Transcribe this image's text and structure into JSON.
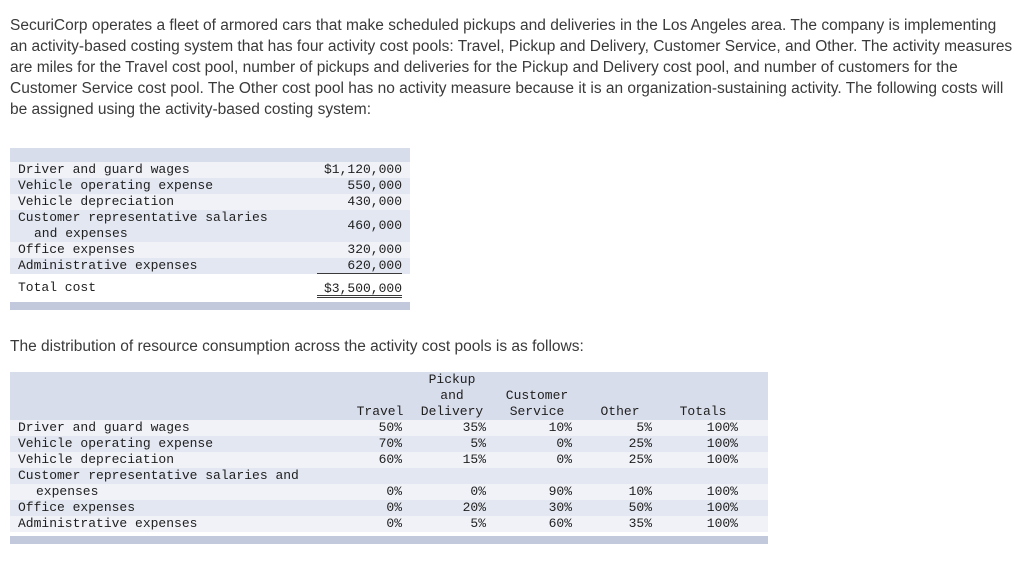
{
  "intro": {
    "text": "SecuriCorp operates a fleet of armored cars that make scheduled pickups and deliveries in the Los Angeles area. The company is implementing an activity-based costing system that has four activity cost pools: Travel, Pickup and Delivery, Customer Service, and Other. The activity measures are miles for the Travel cost pool, number of pickups and deliveries for the Pickup and Delivery cost pool, and number of customers for the Customer Service cost pool. The Other cost pool has no activity measure because it is an organization-sustaining activity. The following costs will be assigned using the activity-based costing system:"
  },
  "distribution_intro": {
    "text": "The distribution of resource consumption across the activity cost pools is as follows:"
  },
  "cost_table": {
    "rows": [
      {
        "label": "Driver and guard wages",
        "value": "$1,120,000"
      },
      {
        "label": "Vehicle operating expense",
        "value": "550,000"
      },
      {
        "label": "Vehicle depreciation",
        "value": "430,000"
      },
      {
        "label_line1": "Customer representative salaries",
        "label_line2": "and expenses",
        "value": "460,000"
      },
      {
        "label": "Office expenses",
        "value": "320,000"
      },
      {
        "label": "Administrative expenses",
        "value": "620,000"
      },
      {
        "label": "Total cost",
        "value": "$3,500,000"
      }
    ]
  },
  "distribution_table": {
    "header": {
      "pickup_line1": "Pickup",
      "pickup_line2": "and",
      "customer_line1": "Customer",
      "col_travel": "Travel",
      "col_delivery": "Delivery",
      "col_service": "Service",
      "col_other": "Other",
      "col_totals": "Totals"
    },
    "rows": [
      {
        "label": "Driver and guard wages",
        "travel": "50%",
        "delivery": "35%",
        "service": "10%",
        "other": "5%",
        "totals": "100%"
      },
      {
        "label": "Vehicle operating expense",
        "travel": "70%",
        "delivery": "5%",
        "service": "0%",
        "other": "25%",
        "totals": "100%"
      },
      {
        "label": "Vehicle depreciation",
        "travel": "60%",
        "delivery": "15%",
        "service": "0%",
        "other": "25%",
        "totals": "100%"
      },
      {
        "label_line1": "Customer representative salaries and",
        "label_line2": "expenses",
        "travel": "0%",
        "delivery": "0%",
        "service": "90%",
        "other": "10%",
        "totals": "100%"
      },
      {
        "label": "Office expenses",
        "travel": "0%",
        "delivery": "20%",
        "service": "30%",
        "other": "50%",
        "totals": "100%"
      },
      {
        "label": "Administrative expenses",
        "travel": "0%",
        "delivery": "5%",
        "service": "60%",
        "other": "35%",
        "totals": "100%"
      }
    ]
  },
  "colors": {
    "table_header": "#d8ddeb",
    "row_light": "#f0f2f8",
    "row_dark": "#e3e7f1",
    "scrollbar": "#c3c9dc"
  }
}
